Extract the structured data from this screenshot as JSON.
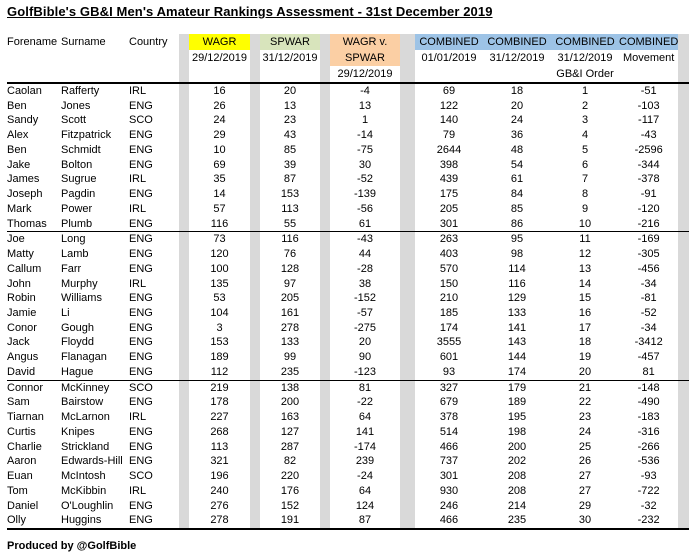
{
  "title": "GolfBible's GB&I Men's Amateur Rankings Assessment - 31st December 2019",
  "footer": "Produced by @GolfBible",
  "colors": {
    "wagr_header": "#FFFF00",
    "spwar_header": "#D8E4BC",
    "wagr_v_spwar_header": "#FBCFA4",
    "combined_header": "#9DC3E6",
    "spacer_column": "#D9D9D9"
  },
  "table": {
    "header": {
      "forename": "Forename",
      "surname": "Surname",
      "country": "Country",
      "wagr_label": "WAGR",
      "wagr_date": "29/12/2019",
      "spwar_label": "SPWAR",
      "spwar_date": "31/12/2019",
      "wvs_label_line1": "WAGR v.",
      "wvs_label_line2": "SPWAR",
      "wvs_date": "29/12/2019",
      "combined_label_1": "COMBINED",
      "combined_date_1": "01/01/2019",
      "combined_label_2": "COMBINED",
      "combined_date_2": "31/12/2019",
      "combined_label_3": "COMBINED",
      "combined_date_3": "31/12/2019",
      "combined_sub_3": "GB&I Order",
      "combined_label_4": "COMBINED",
      "combined_sub_4": "Movement"
    },
    "columns": [
      "Forename",
      "Surname",
      "Country",
      "WAGR 29/12/2019",
      "SPWAR 31/12/2019",
      "WAGR v. SPWAR 29/12/2019",
      "COMBINED 01/01/2019",
      "COMBINED 31/12/2019",
      "COMBINED 31/12/2019 GB&I Order",
      "COMBINED Movement"
    ],
    "rows": [
      [
        "Caolan",
        "Rafferty",
        "IRL",
        16,
        20,
        -4,
        69,
        18,
        1,
        -51
      ],
      [
        "Ben",
        "Jones",
        "ENG",
        26,
        13,
        13,
        122,
        20,
        2,
        -103
      ],
      [
        "Sandy",
        "Scott",
        "SCO",
        24,
        23,
        1,
        140,
        24,
        3,
        -117
      ],
      [
        "Alex",
        "Fitzpatrick",
        "ENG",
        29,
        43,
        -14,
        79,
        36,
        4,
        -43
      ],
      [
        "Ben",
        "Schmidt",
        "ENG",
        10,
        85,
        -75,
        2644,
        48,
        5,
        -2596
      ],
      [
        "Jake",
        "Bolton",
        "ENG",
        69,
        39,
        30,
        398,
        54,
        6,
        -344
      ],
      [
        "James",
        "Sugrue",
        "IRL",
        35,
        87,
        -52,
        439,
        61,
        7,
        -378
      ],
      [
        "Joseph",
        "Pagdin",
        "ENG",
        14,
        153,
        -139,
        175,
        84,
        8,
        -91
      ],
      [
        "Mark",
        "Power",
        "IRL",
        57,
        113,
        -56,
        205,
        85,
        9,
        -120
      ],
      [
        "Thomas",
        "Plumb",
        "ENG",
        116,
        55,
        61,
        301,
        86,
        10,
        -216
      ],
      [
        "Joe",
        "Long",
        "ENG",
        73,
        116,
        -43,
        263,
        95,
        11,
        -169
      ],
      [
        "Matty",
        "Lamb",
        "ENG",
        120,
        76,
        44,
        403,
        98,
        12,
        -305
      ],
      [
        "Callum",
        "Farr",
        "ENG",
        100,
        128,
        -28,
        570,
        114,
        13,
        -456
      ],
      [
        "John",
        "Murphy",
        "IRL",
        135,
        97,
        38,
        150,
        116,
        14,
        -34
      ],
      [
        "Robin",
        "Williams",
        "ENG",
        53,
        205,
        -152,
        210,
        129,
        15,
        -81
      ],
      [
        "Jamie",
        "Li",
        "ENG",
        104,
        161,
        -57,
        185,
        133,
        16,
        -52
      ],
      [
        "Conor",
        "Gough",
        "ENG",
        3,
        278,
        -275,
        174,
        141,
        17,
        -34
      ],
      [
        "Jack",
        "Floydd",
        "ENG",
        153,
        133,
        20,
        3555,
        143,
        18,
        -3412
      ],
      [
        "Angus",
        "Flanagan",
        "ENG",
        189,
        99,
        90,
        601,
        144,
        19,
        -457
      ],
      [
        "David",
        "Hague",
        "ENG",
        112,
        235,
        -123,
        93,
        174,
        20,
        81
      ],
      [
        "Connor",
        "McKinney",
        "SCO",
        219,
        138,
        81,
        327,
        179,
        21,
        -148
      ],
      [
        "Sam",
        "Bairstow",
        "ENG",
        178,
        200,
        -22,
        679,
        189,
        22,
        -490
      ],
      [
        "Tiarnan",
        "McLarnon",
        "IRL",
        227,
        163,
        64,
        378,
        195,
        23,
        -183
      ],
      [
        "Curtis",
        "Knipes",
        "ENG",
        268,
        127,
        141,
        514,
        198,
        24,
        -316
      ],
      [
        "Charlie",
        "Strickland",
        "ENG",
        113,
        287,
        -174,
        466,
        200,
        25,
        -266
      ],
      [
        "Aaron",
        "Edwards-Hill",
        "ENG",
        321,
        82,
        239,
        737,
        202,
        26,
        -536
      ],
      [
        "Euan",
        "McIntosh",
        "SCO",
        196,
        220,
        -24,
        301,
        208,
        27,
        -93
      ],
      [
        "Tom",
        "McKibbin",
        "IRL",
        240,
        176,
        64,
        930,
        208,
        27,
        -722
      ],
      [
        "Daniel",
        "O'Loughlin",
        "ENG",
        276,
        152,
        124,
        246,
        214,
        29,
        -32
      ],
      [
        "Olly",
        "Huggins",
        "ENG",
        278,
        191,
        87,
        466,
        235,
        30,
        -232
      ]
    ],
    "group_breaks_after": [
      10,
      20
    ]
  }
}
